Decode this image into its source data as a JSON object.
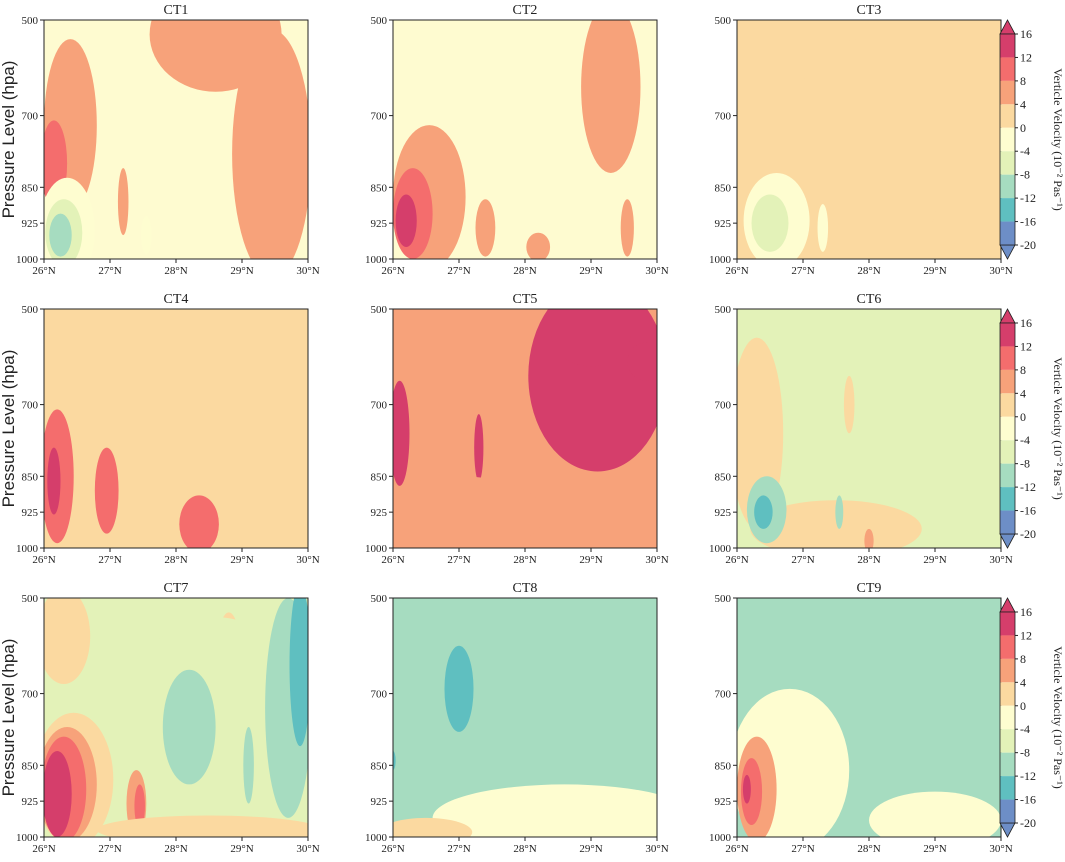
{
  "figure": {
    "y_axis_label": "Pressure Level (hpa)",
    "colorbar_label": "Verticle Velocity (10⁻² Pas⁻¹)"
  },
  "chart_data": {
    "type": "heatmap",
    "x_ticks": [
      "26°N",
      "27°N",
      "28°N",
      "29°N",
      "30°N"
    ],
    "x_range": [
      26,
      30
    ],
    "y_ticks": [
      "500",
      "700",
      "850",
      "925",
      "1000"
    ],
    "y_tick_values": [
      500,
      700,
      850,
      925,
      1000
    ],
    "colorbar": {
      "levels": [
        16,
        12,
        8,
        4,
        0,
        -4,
        -8,
        -12,
        -16,
        -20
      ],
      "colors": [
        "#d53e6b",
        "#f46d6d",
        "#f7a27a",
        "#fbd9a0",
        "#fefdd0",
        "#e3f2b8",
        "#a6dcc0",
        "#5fbfc0",
        "#6d8ec7"
      ],
      "extend": "both"
    },
    "panels": [
      {
        "title": "CT1",
        "background": "#fefbd0",
        "blobs": [
          {
            "x": 29.45,
            "p": 780,
            "rx": 0.6,
            "rp": 260,
            "level": 4
          },
          {
            "x": 28.6,
            "p": 530,
            "rx": 1.0,
            "rp": 120,
            "level": 4
          },
          {
            "x": 26.4,
            "p": 720,
            "rx": 0.4,
            "rp": 180,
            "level": 4
          },
          {
            "x": 26.15,
            "p": 800,
            "rx": 0.2,
            "rp": 90,
            "level": 8
          },
          {
            "x": 26.35,
            "p": 940,
            "rx": 0.42,
            "rp": 110,
            "level": -4
          },
          {
            "x": 26.3,
            "p": 945,
            "rx": 0.28,
            "rp": 70,
            "level": -8
          },
          {
            "x": 26.25,
            "p": 950,
            "rx": 0.17,
            "rp": 45,
            "level": -12
          },
          {
            "x": 27.2,
            "p": 880,
            "rx": 0.08,
            "rp": 70,
            "level": 4
          },
          {
            "x": 27.55,
            "p": 950,
            "rx": 0.08,
            "rp": 40,
            "level": -4
          }
        ]
      },
      {
        "title": "CT2",
        "background": "#fefbd0",
        "blobs": [
          {
            "x": 26.55,
            "p": 870,
            "rx": 0.55,
            "rp": 150,
            "level": 4
          },
          {
            "x": 26.3,
            "p": 905,
            "rx": 0.3,
            "rp": 95,
            "level": 8
          },
          {
            "x": 26.2,
            "p": 920,
            "rx": 0.16,
            "rp": 55,
            "level": 16
          },
          {
            "x": 27.4,
            "p": 935,
            "rx": 0.15,
            "rp": 60,
            "level": 4
          },
          {
            "x": 29.3,
            "p": 640,
            "rx": 0.45,
            "rp": 180,
            "level": 4
          },
          {
            "x": 29.55,
            "p": 935,
            "rx": 0.1,
            "rp": 60,
            "level": 4
          },
          {
            "x": 28.2,
            "p": 975,
            "rx": 0.18,
            "rp": 30,
            "level": 4
          }
        ]
      },
      {
        "title": "CT3",
        "background": "#fbd9a0",
        "blobs": [
          {
            "x": 27.9,
            "p": 800,
            "rx": 1.2,
            "rp": 260,
            "level": 0
          },
          {
            "x": 26.6,
            "p": 920,
            "rx": 0.5,
            "rp": 100,
            "level": -4
          },
          {
            "x": 26.5,
            "p": 925,
            "rx": 0.28,
            "rp": 60,
            "level": -8
          },
          {
            "x": 27.3,
            "p": 935,
            "rx": 0.08,
            "rp": 50,
            "level": -4
          }
        ]
      },
      {
        "title": "CT4",
        "background": "#fbd9a0",
        "blobs": [
          {
            "x": 26.2,
            "p": 850,
            "rx": 0.25,
            "rp": 140,
            "level": 8
          },
          {
            "x": 26.15,
            "p": 860,
            "rx": 0.1,
            "rp": 70,
            "level": 12
          },
          {
            "x": 26.95,
            "p": 880,
            "rx": 0.18,
            "rp": 90,
            "level": 8
          },
          {
            "x": 27.7,
            "p": 720,
            "rx": 0.06,
            "rp": 70,
            "level": 0
          },
          {
            "x": 28.35,
            "p": 950,
            "rx": 0.3,
            "rp": 60,
            "level": 8
          }
        ]
      },
      {
        "title": "CT5",
        "background": "#f7a27a",
        "blobs": [
          {
            "x": 29.1,
            "p": 640,
            "rx": 1.05,
            "rp": 200,
            "level": 12
          },
          {
            "x": 29.0,
            "p": 550,
            "rx": 0.6,
            "rp": 70,
            "level": 16
          },
          {
            "x": 29.85,
            "p": 610,
            "rx": 0.3,
            "rp": 40,
            "level": 16
          },
          {
            "x": 26.1,
            "p": 760,
            "rx": 0.15,
            "rp": 110,
            "level": 12
          },
          {
            "x": 27.3,
            "p": 790,
            "rx": 0.07,
            "rp": 70,
            "level": 12
          },
          {
            "x": 27.0,
            "p": 930,
            "rx": 1.3,
            "rp": 80,
            "level": 4
          }
        ]
      },
      {
        "title": "CT6",
        "background": "#e3f2b8",
        "blobs": [
          {
            "x": 26.3,
            "p": 760,
            "rx": 0.4,
            "rp": 200,
            "level": 0
          },
          {
            "x": 27.5,
            "p": 960,
            "rx": 1.3,
            "rp": 60,
            "level": 0
          },
          {
            "x": 27.7,
            "p": 700,
            "rx": 0.08,
            "rp": 60,
            "level": 0
          },
          {
            "x": 26.45,
            "p": 920,
            "rx": 0.3,
            "rp": 70,
            "level": -12
          },
          {
            "x": 26.4,
            "p": 925,
            "rx": 0.14,
            "rp": 35,
            "level": -16
          },
          {
            "x": 27.55,
            "p": 925,
            "rx": 0.06,
            "rp": 35,
            "level": -12
          },
          {
            "x": 28.0,
            "p": 985,
            "rx": 0.07,
            "rp": 25,
            "level": 4
          }
        ]
      },
      {
        "title": "CT7",
        "background": "#e3f2b8",
        "blobs": [
          {
            "x": 26.3,
            "p": 580,
            "rx": 0.4,
            "rp": 100,
            "level": 0
          },
          {
            "x": 28.8,
            "p": 640,
            "rx": 0.2,
            "rp": 110,
            "level": 0
          },
          {
            "x": 28.6,
            "p": 760,
            "rx": 1.4,
            "rp": 220,
            "level": -8
          },
          {
            "x": 28.2,
            "p": 770,
            "rx": 0.4,
            "rp": 120,
            "level": -12
          },
          {
            "x": 29.7,
            "p": 730,
            "rx": 0.35,
            "rp": 230,
            "level": -12
          },
          {
            "x": 29.88,
            "p": 640,
            "rx": 0.16,
            "rp": 170,
            "level": -16
          },
          {
            "x": 29.1,
            "p": 850,
            "rx": 0.08,
            "rp": 80,
            "level": -12
          },
          {
            "x": 27.0,
            "p": 770,
            "rx": 0.2,
            "rp": 120,
            "level": -8
          },
          {
            "x": 26.45,
            "p": 880,
            "rx": 0.6,
            "rp": 140,
            "level": 0
          },
          {
            "x": 26.35,
            "p": 890,
            "rx": 0.45,
            "rp": 120,
            "level": 4
          },
          {
            "x": 26.3,
            "p": 900,
            "rx": 0.34,
            "rp": 110,
            "level": 8
          },
          {
            "x": 26.2,
            "p": 910,
            "rx": 0.22,
            "rp": 90,
            "level": 16
          },
          {
            "x": 27.4,
            "p": 930,
            "rx": 0.15,
            "rp": 70,
            "level": 4
          },
          {
            "x": 27.45,
            "p": 935,
            "rx": 0.08,
            "rp": 45,
            "level": 8
          },
          {
            "x": 28.5,
            "p": 985,
            "rx": 1.7,
            "rp": 30,
            "level": 0
          }
        ]
      },
      {
        "title": "CT8",
        "background": "#a6dcc0",
        "blobs": [
          {
            "x": 28.6,
            "p": 960,
            "rx": 2.0,
            "rp": 70,
            "level": -4
          },
          {
            "x": 27.05,
            "p": 720,
            "rx": 0.6,
            "rp": 190,
            "level": -12
          },
          {
            "x": 27.0,
            "p": 690,
            "rx": 0.22,
            "rp": 90,
            "level": -16
          },
          {
            "x": 26.0,
            "p": 840,
            "rx": 0.04,
            "rp": 20,
            "level": -16
          },
          {
            "x": 26.5,
            "p": 990,
            "rx": 0.7,
            "rp": 30,
            "level": 0
          }
        ]
      },
      {
        "title": "CT9",
        "background": "#a6dcc0",
        "blobs": [
          {
            "x": 29.25,
            "p": 650,
            "rx": 0.6,
            "rp": 130,
            "level": -12
          },
          {
            "x": 26.8,
            "p": 860,
            "rx": 0.9,
            "rp": 170,
            "level": -4
          },
          {
            "x": 26.3,
            "p": 900,
            "rx": 0.3,
            "rp": 110,
            "level": 4
          },
          {
            "x": 26.22,
            "p": 905,
            "rx": 0.16,
            "rp": 70,
            "level": 8
          },
          {
            "x": 26.15,
            "p": 900,
            "rx": 0.06,
            "rp": 30,
            "level": 12
          },
          {
            "x": 29.0,
            "p": 965,
            "rx": 1.0,
            "rp": 60,
            "level": -4
          },
          {
            "x": 27.0,
            "p": 660,
            "rx": 0.05,
            "rp": 20,
            "level": -12
          }
        ]
      }
    ]
  }
}
